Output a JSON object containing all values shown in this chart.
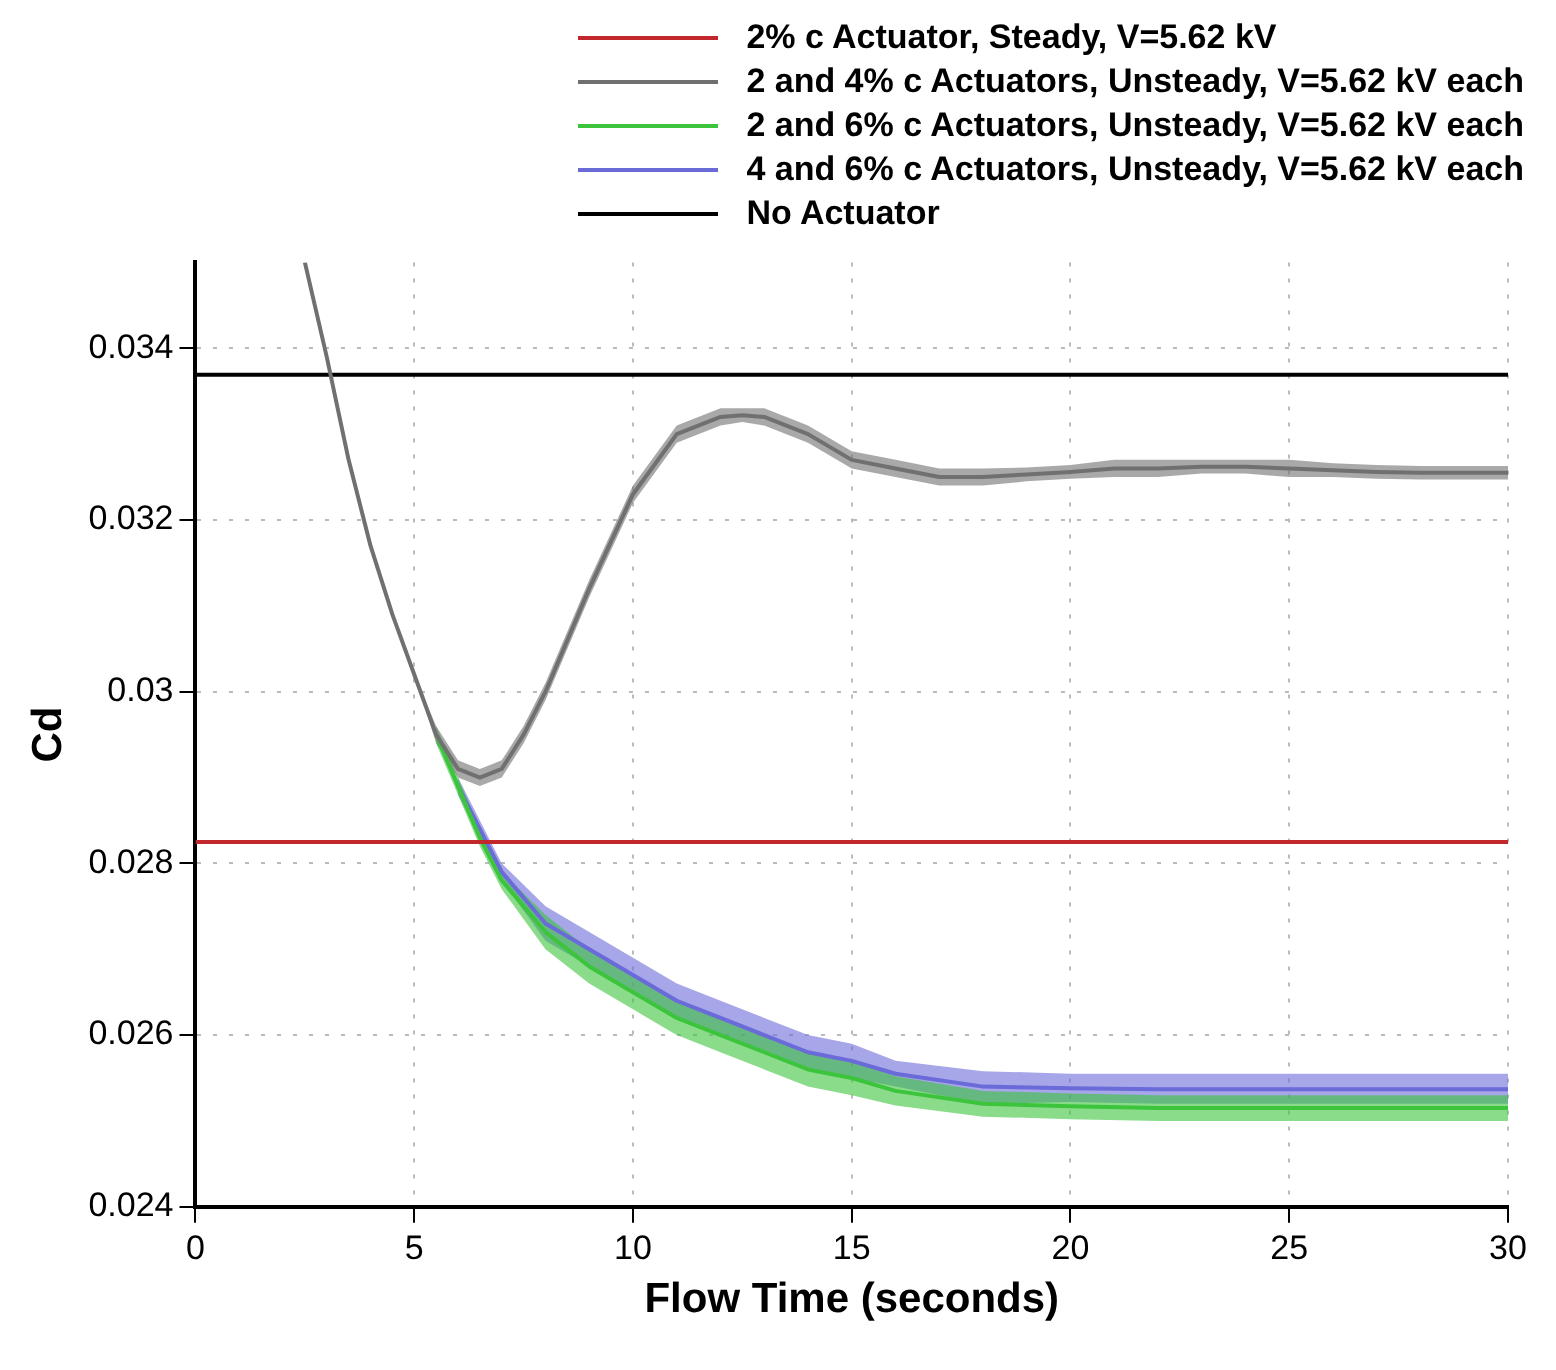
{
  "chart_data": {
    "type": "line",
    "xlabel": "Flow Time (seconds)",
    "ylabel": "Cd",
    "xlim": [
      0,
      30
    ],
    "xticks": [
      0,
      5,
      10,
      15,
      20,
      25,
      30
    ],
    "ylim": [
      0.024,
      0.035
    ],
    "yticks": [
      0.024,
      0.026,
      0.028,
      0.03,
      0.032,
      0.034
    ],
    "grid": true,
    "legend": "top right",
    "marker": "none",
    "line_style": "solid",
    "series": [
      {
        "name": "2% c Actuator, Steady, V=5.62 kV",
        "color": "#c0282c",
        "x": [
          0,
          30
        ],
        "values": [
          0.02825,
          0.02825
        ]
      },
      {
        "name": "2 and 4% c Actuators, Unsteady, V=5.62 kV each",
        "color": "#707070",
        "x": [
          2.5,
          3,
          3.5,
          4,
          4.5,
          5,
          5.5,
          6,
          6.5,
          7,
          7.5,
          8,
          8.5,
          9,
          10,
          11,
          12,
          12.5,
          13,
          14,
          15,
          16,
          17,
          18,
          19,
          20,
          21,
          22,
          23,
          24,
          25,
          26,
          27,
          28,
          29,
          30
        ],
        "values": [
          0.035,
          0.0339,
          0.0327,
          0.0317,
          0.0309,
          0.0302,
          0.0295,
          0.0291,
          0.029,
          0.0291,
          0.0295,
          0.03,
          0.0306,
          0.0312,
          0.0323,
          0.033,
          0.0332,
          0.03322,
          0.0332,
          0.033,
          0.0327,
          0.0326,
          0.0325,
          0.0325,
          0.03253,
          0.03256,
          0.0326,
          0.0326,
          0.03262,
          0.03262,
          0.0326,
          0.03258,
          0.03256,
          0.03255,
          0.03255,
          0.03255
        ],
        "lower": [
          0.035,
          0.0339,
          0.0327,
          0.0317,
          0.0309,
          0.0302,
          0.0294,
          0.029,
          0.0289,
          0.029,
          0.0294,
          0.0299,
          0.0305,
          0.0311,
          0.0322,
          0.0329,
          0.0331,
          0.03314,
          0.0331,
          0.0329,
          0.0326,
          0.0325,
          0.0324,
          0.0324,
          0.03245,
          0.03248,
          0.0325,
          0.0325,
          0.03254,
          0.03254,
          0.0325,
          0.0325,
          0.03248,
          0.03247,
          0.03247,
          0.03247
        ],
        "upper": [
          0.035,
          0.0339,
          0.0327,
          0.0317,
          0.0309,
          0.0302,
          0.0296,
          0.0292,
          0.0291,
          0.0292,
          0.0296,
          0.0301,
          0.0307,
          0.0313,
          0.0324,
          0.0331,
          0.0333,
          0.0333,
          0.0333,
          0.0331,
          0.0328,
          0.0327,
          0.0326,
          0.0326,
          0.03261,
          0.03264,
          0.0327,
          0.0327,
          0.0327,
          0.0327,
          0.0327,
          0.03266,
          0.03264,
          0.03263,
          0.03263,
          0.03263
        ]
      },
      {
        "name": "2 and 6% c Actuators, Unsteady, V=5.62 kV each",
        "color": "#3cc43c",
        "x": [
          5.5,
          6,
          6.5,
          7,
          8,
          9,
          10,
          11,
          12,
          13,
          14,
          15,
          16,
          18,
          20,
          22,
          24,
          26,
          28,
          30
        ],
        "values": [
          0.0295,
          0.0289,
          0.0283,
          0.0278,
          0.0272,
          0.0268,
          0.0265,
          0.0262,
          0.026,
          0.0258,
          0.0256,
          0.0255,
          0.02535,
          0.0252,
          0.02517,
          0.02515,
          0.02515,
          0.02515,
          0.02515,
          0.02515
        ],
        "lower": [
          0.0294,
          0.0288,
          0.0282,
          0.0277,
          0.027,
          0.0266,
          0.0263,
          0.026,
          0.0258,
          0.0256,
          0.0254,
          0.0253,
          0.02518,
          0.02505,
          0.02502,
          0.025,
          0.025,
          0.025,
          0.025,
          0.025
        ],
        "upper": [
          0.0296,
          0.029,
          0.0284,
          0.0279,
          0.0274,
          0.027,
          0.0267,
          0.0264,
          0.0262,
          0.026,
          0.0258,
          0.0257,
          0.02552,
          0.02535,
          0.02532,
          0.0253,
          0.0253,
          0.0253,
          0.0253,
          0.0253
        ]
      },
      {
        "name": "4 and 6% c Actuators, Unsteady, V=5.62 kV each",
        "color": "#6a6ad8",
        "x": [
          6,
          6.5,
          7,
          8,
          9,
          10,
          11,
          12,
          13,
          14,
          15,
          16,
          18,
          20,
          22,
          24,
          26,
          28,
          30
        ],
        "values": [
          0.0289,
          0.0284,
          0.0279,
          0.0273,
          0.027,
          0.0267,
          0.0264,
          0.0262,
          0.026,
          0.0258,
          0.0257,
          0.02555,
          0.0254,
          0.02538,
          0.02537,
          0.02537,
          0.02537,
          0.02537,
          0.02537
        ],
        "lower": [
          0.0288,
          0.0283,
          0.0278,
          0.0271,
          0.0268,
          0.0265,
          0.0262,
          0.026,
          0.0258,
          0.0256,
          0.0255,
          0.0254,
          0.0252,
          0.02522,
          0.0252,
          0.0252,
          0.0252,
          0.0252,
          0.0252
        ],
        "upper": [
          0.029,
          0.0285,
          0.028,
          0.0275,
          0.0272,
          0.0269,
          0.0266,
          0.0264,
          0.0262,
          0.026,
          0.0259,
          0.0257,
          0.02558,
          0.02555,
          0.02555,
          0.02555,
          0.02555,
          0.02555,
          0.02555
        ]
      },
      {
        "name": "No Actuator",
        "color": "#000000",
        "x": [
          0,
          30
        ],
        "values": [
          0.03369,
          0.03369
        ]
      }
    ]
  }
}
